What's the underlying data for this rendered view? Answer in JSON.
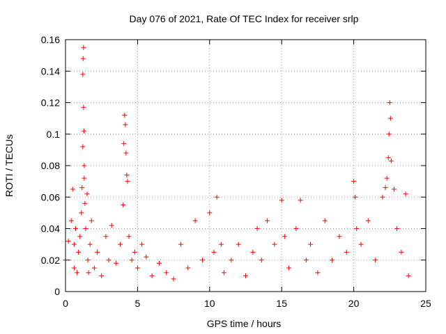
{
  "chart_data": {
    "type": "scatter",
    "title": "Day 076 of 2021, Rate Of TEC Index for receiver srlp",
    "xlabel": "GPS time / hours",
    "ylabel": "ROTI / TECUs",
    "xlim": [
      0,
      25
    ],
    "ylim": [
      0,
      0.16
    ],
    "xticks": [
      0,
      5,
      10,
      15,
      20,
      25
    ],
    "xtick_labels": [
      "0",
      "5",
      "10",
      "15",
      "20",
      "25"
    ],
    "yticks": [
      0,
      0.02,
      0.04,
      0.06,
      0.08,
      0.1,
      0.12,
      0.14,
      0.16
    ],
    "ytick_labels": [
      "0",
      "0.02",
      "0.04",
      "0.06",
      "0.08",
      "0.1",
      "0.12",
      "0.14",
      "0.16"
    ],
    "grid": true,
    "marker": "+",
    "series": [
      {
        "name": "srlp",
        "color": "#ff0000",
        "x": [
          0.0,
          0.2,
          0.4,
          0.5,
          0.6,
          0.6,
          0.7,
          0.8,
          0.9,
          1.0,
          1.1,
          1.15,
          1.2,
          1.2,
          1.22,
          1.25,
          1.25,
          1.28,
          1.3,
          1.3,
          1.35,
          1.4,
          1.5,
          1.55,
          1.6,
          1.7,
          1.8,
          2.0,
          2.2,
          2.5,
          2.8,
          3.0,
          3.2,
          3.5,
          3.8,
          4.0,
          4.05,
          4.1,
          4.15,
          4.2,
          4.25,
          4.3,
          4.4,
          4.6,
          4.8,
          5.0,
          5.3,
          5.6,
          6.0,
          6.5,
          7.0,
          7.5,
          8.0,
          8.5,
          9.0,
          9.5,
          10.0,
          10.3,
          10.5,
          10.8,
          11.0,
          11.5,
          12.0,
          12.5,
          13.0,
          13.3,
          13.6,
          14.0,
          14.5,
          15.0,
          15.2,
          15.5,
          16.0,
          16.3,
          16.7,
          17.0,
          17.5,
          18.0,
          18.5,
          19.0,
          19.5,
          20.0,
          20.1,
          20.2,
          20.5,
          21.0,
          21.5,
          22.0,
          22.2,
          22.3,
          22.4,
          22.45,
          22.5,
          22.55,
          22.6,
          22.8,
          23.0,
          23.3,
          23.6,
          23.8
        ],
        "y": [
          0.02,
          0.032,
          0.045,
          0.065,
          0.03,
          0.015,
          0.04,
          0.012,
          0.025,
          0.035,
          0.05,
          0.066,
          0.092,
          0.138,
          0.148,
          0.155,
          0.117,
          0.102,
          0.08,
          0.072,
          0.056,
          0.04,
          0.062,
          0.02,
          0.012,
          0.03,
          0.045,
          0.015,
          0.025,
          0.01,
          0.035,
          0.02,
          0.042,
          0.018,
          0.03,
          0.055,
          0.094,
          0.112,
          0.106,
          0.088,
          0.074,
          0.07,
          0.035,
          0.02,
          0.025,
          0.015,
          0.03,
          0.022,
          0.01,
          0.018,
          0.012,
          0.008,
          0.03,
          0.015,
          0.045,
          0.02,
          0.05,
          0.025,
          0.06,
          0.03,
          0.012,
          0.02,
          0.03,
          0.01,
          0.025,
          0.04,
          0.02,
          0.045,
          0.03,
          0.058,
          0.035,
          0.015,
          0.04,
          0.058,
          0.02,
          0.03,
          0.012,
          0.045,
          0.02,
          0.035,
          0.025,
          0.07,
          0.06,
          0.04,
          0.03,
          0.045,
          0.02,
          0.06,
          0.066,
          0.072,
          0.085,
          0.1,
          0.12,
          0.11,
          0.083,
          0.065,
          0.04,
          0.025,
          0.062,
          0.01
        ]
      }
    ]
  }
}
